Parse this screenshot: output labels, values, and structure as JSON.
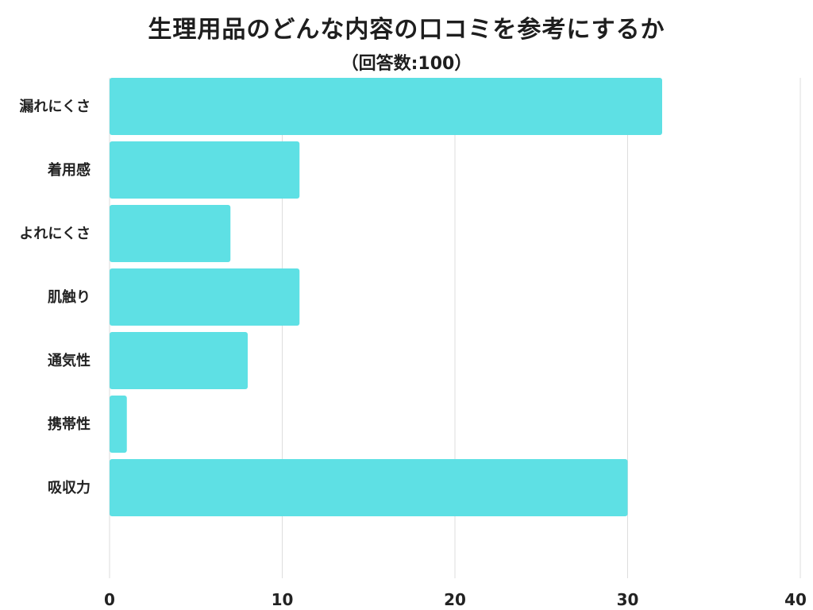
{
  "chart_data": {
    "type": "bar",
    "orientation": "horizontal",
    "title": "生理用品のどんな内容の口コミを参考にするか",
    "subtitle": "（回答数:100）",
    "categories": [
      "漏れにくさ",
      "着用感",
      "よれにくさ",
      "肌触り",
      "通気性",
      "携帯性",
      "吸収力"
    ],
    "values": [
      32,
      11,
      7,
      11,
      8,
      1,
      30
    ],
    "xlim": [
      0,
      40
    ],
    "xticks": [
      0,
      10,
      20,
      30,
      40
    ],
    "grid": true,
    "colors": {
      "bar": "#5ee0e4",
      "grid": "#dddddd"
    }
  }
}
